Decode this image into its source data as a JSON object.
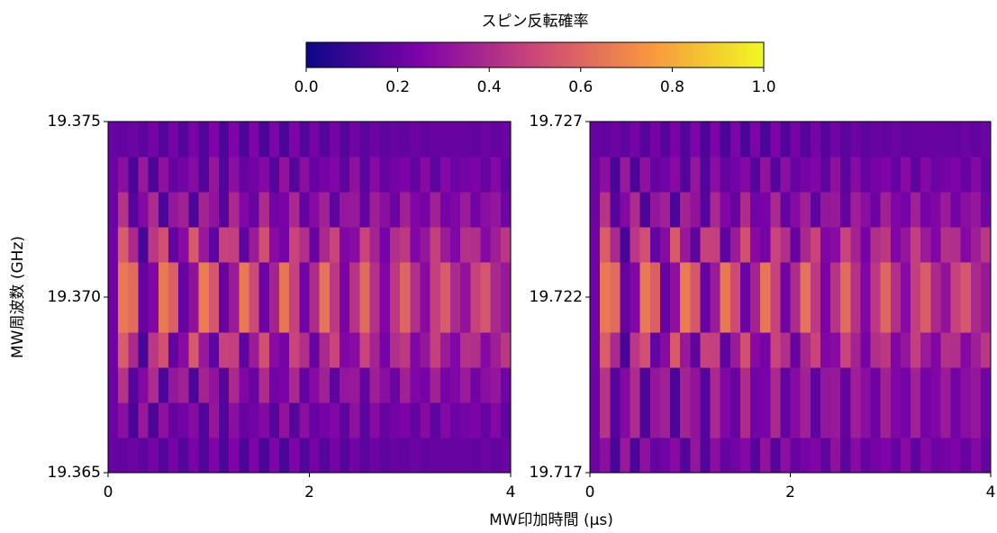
{
  "xlabel": "MW印加時間 (μs)",
  "colorbar": {
    "label": "スピン反転確率",
    "lim": [
      0,
      1
    ],
    "ticks": [
      {
        "value": 0,
        "label": "0.0"
      },
      0.2,
      0.4,
      0.6,
      0.8,
      {
        "value": 1,
        "label": "1.0"
      }
    ],
    "colormap": [
      "#0d0887",
      "#7e03a8",
      "#cc4778",
      "#f89540",
      "#f0f921"
    ]
  },
  "chart_data": [
    {
      "type": "heatmap",
      "ylabel": "MW周波数 (GHz)",
      "xlim": [
        0,
        4
      ],
      "ylim": [
        19.365,
        19.375
      ],
      "xticks": [
        0,
        2,
        4
      ],
      "yticks": [
        19.365,
        {
          "value": 19.37,
          "label": "19.370"
        },
        19.375
      ],
      "z": [
        [
          0.2,
          0.19,
          0.21,
          0.18,
          0.23,
          0.16,
          0.23,
          0.16,
          0.24,
          0.15,
          0.25,
          0.14,
          0.25,
          0.14,
          0.25,
          0.14,
          0.25,
          0.14,
          0.25,
          0.15,
          0.23,
          0.16,
          0.23,
          0.16,
          0.22,
          0.17,
          0.21,
          0.18,
          0.2,
          0.19,
          0.21,
          0.19,
          0.2,
          0.2,
          0.2,
          0.2,
          0.19,
          0.21,
          0.19,
          0.21
        ],
        [
          0.21,
          0.29,
          0.13,
          0.33,
          0.14,
          0.3,
          0.2,
          0.22,
          0.28,
          0.15,
          0.32,
          0.15,
          0.29,
          0.2,
          0.22,
          0.27,
          0.16,
          0.31,
          0.16,
          0.29,
          0.2,
          0.23,
          0.26,
          0.18,
          0.3,
          0.17,
          0.28,
          0.2,
          0.23,
          0.25,
          0.19,
          0.28,
          0.18,
          0.27,
          0.21,
          0.23,
          0.25,
          0.2,
          0.27,
          0.19
        ],
        [
          0.21,
          0.43,
          0.16,
          0.27,
          0.4,
          0.14,
          0.32,
          0.36,
          0.14,
          0.37,
          0.31,
          0.16,
          0.39,
          0.26,
          0.2,
          0.4,
          0.22,
          0.24,
          0.39,
          0.19,
          0.28,
          0.36,
          0.18,
          0.32,
          0.33,
          0.19,
          0.35,
          0.29,
          0.21,
          0.36,
          0.26,
          0.23,
          0.36,
          0.23,
          0.26,
          0.34,
          0.22,
          0.29,
          0.32,
          0.22
        ],
        [
          0.22,
          0.57,
          0.39,
          0.13,
          0.44,
          0.53,
          0.19,
          0.28,
          0.56,
          0.33,
          0.18,
          0.48,
          0.47,
          0.18,
          0.34,
          0.53,
          0.28,
          0.23,
          0.49,
          0.41,
          0.2,
          0.39,
          0.49,
          0.26,
          0.28,
          0.49,
          0.37,
          0.23,
          0.41,
          0.45,
          0.26,
          0.32,
          0.47,
          0.34,
          0.26,
          0.42,
          0.41,
          0.27,
          0.35,
          0.44
        ],
        [
          0.22,
          0.66,
          0.62,
          0.2,
          0.26,
          0.66,
          0.58,
          0.2,
          0.3,
          0.67,
          0.55,
          0.2,
          0.34,
          0.66,
          0.51,
          0.21,
          0.37,
          0.65,
          0.48,
          0.22,
          0.4,
          0.64,
          0.45,
          0.24,
          0.43,
          0.62,
          0.42,
          0.26,
          0.45,
          0.6,
          0.41,
          0.28,
          0.47,
          0.57,
          0.39,
          0.31,
          0.48,
          0.55,
          0.39,
          0.33
        ],
        [
          0.22,
          0.66,
          0.62,
          0.2,
          0.26,
          0.66,
          0.58,
          0.2,
          0.3,
          0.67,
          0.55,
          0.2,
          0.34,
          0.66,
          0.51,
          0.21,
          0.37,
          0.65,
          0.48,
          0.22,
          0.4,
          0.64,
          0.45,
          0.24,
          0.43,
          0.62,
          0.42,
          0.26,
          0.45,
          0.6,
          0.41,
          0.28,
          0.47,
          0.57,
          0.39,
          0.31,
          0.48,
          0.55,
          0.39,
          0.33
        ],
        [
          0.22,
          0.57,
          0.39,
          0.13,
          0.44,
          0.53,
          0.19,
          0.28,
          0.56,
          0.33,
          0.18,
          0.48,
          0.47,
          0.18,
          0.34,
          0.53,
          0.28,
          0.23,
          0.49,
          0.41,
          0.2,
          0.39,
          0.49,
          0.26,
          0.28,
          0.49,
          0.37,
          0.23,
          0.41,
          0.45,
          0.26,
          0.32,
          0.47,
          0.34,
          0.26,
          0.42,
          0.41,
          0.27,
          0.35,
          0.44
        ],
        [
          0.21,
          0.43,
          0.16,
          0.27,
          0.4,
          0.14,
          0.32,
          0.36,
          0.14,
          0.37,
          0.31,
          0.16,
          0.39,
          0.26,
          0.2,
          0.4,
          0.22,
          0.24,
          0.39,
          0.19,
          0.28,
          0.36,
          0.18,
          0.32,
          0.33,
          0.19,
          0.35,
          0.29,
          0.21,
          0.36,
          0.26,
          0.23,
          0.36,
          0.23,
          0.26,
          0.34,
          0.22,
          0.29,
          0.32,
          0.22
        ],
        [
          0.21,
          0.29,
          0.13,
          0.33,
          0.14,
          0.3,
          0.2,
          0.22,
          0.28,
          0.15,
          0.32,
          0.15,
          0.29,
          0.2,
          0.22,
          0.27,
          0.16,
          0.31,
          0.16,
          0.29,
          0.2,
          0.23,
          0.26,
          0.18,
          0.3,
          0.17,
          0.28,
          0.2,
          0.23,
          0.25,
          0.19,
          0.28,
          0.18,
          0.27,
          0.21,
          0.23,
          0.25,
          0.2,
          0.27,
          0.19
        ],
        [
          0.2,
          0.19,
          0.21,
          0.18,
          0.23,
          0.16,
          0.23,
          0.16,
          0.24,
          0.15,
          0.25,
          0.14,
          0.25,
          0.14,
          0.25,
          0.14,
          0.25,
          0.14,
          0.25,
          0.15,
          0.23,
          0.16,
          0.23,
          0.16,
          0.22,
          0.17,
          0.21,
          0.18,
          0.2,
          0.19,
          0.21,
          0.19,
          0.2,
          0.2,
          0.2,
          0.2,
          0.19,
          0.21,
          0.19,
          0.21
        ]
      ]
    },
    {
      "type": "heatmap",
      "xlim": [
        0,
        4
      ],
      "ylim": [
        19.717,
        19.727
      ],
      "xticks": [
        0,
        2,
        4
      ],
      "yticks": [
        19.717,
        19.722,
        19.727
      ],
      "z": [
        [
          0.21,
          0.29,
          0.13,
          0.33,
          0.14,
          0.3,
          0.2,
          0.22,
          0.28,
          0.15,
          0.32,
          0.15,
          0.29,
          0.2,
          0.22,
          0.27,
          0.16,
          0.31,
          0.16,
          0.29,
          0.2,
          0.23,
          0.26,
          0.18,
          0.3,
          0.17,
          0.28,
          0.2,
          0.23,
          0.25,
          0.19,
          0.28,
          0.18,
          0.27,
          0.21,
          0.23,
          0.25,
          0.2,
          0.27,
          0.19
        ],
        [
          0.21,
          0.43,
          0.16,
          0.27,
          0.4,
          0.14,
          0.32,
          0.36,
          0.14,
          0.37,
          0.31,
          0.16,
          0.39,
          0.26,
          0.2,
          0.4,
          0.22,
          0.24,
          0.39,
          0.19,
          0.28,
          0.36,
          0.18,
          0.32,
          0.33,
          0.19,
          0.35,
          0.29,
          0.21,
          0.36,
          0.26,
          0.23,
          0.36,
          0.23,
          0.26,
          0.34,
          0.22,
          0.29,
          0.32,
          0.22
        ],
        [
          0.21,
          0.43,
          0.16,
          0.27,
          0.4,
          0.14,
          0.32,
          0.36,
          0.14,
          0.37,
          0.31,
          0.16,
          0.39,
          0.26,
          0.2,
          0.4,
          0.22,
          0.24,
          0.39,
          0.19,
          0.28,
          0.36,
          0.18,
          0.32,
          0.33,
          0.19,
          0.35,
          0.29,
          0.21,
          0.36,
          0.26,
          0.23,
          0.36,
          0.23,
          0.26,
          0.34,
          0.22,
          0.29,
          0.32,
          0.22
        ],
        [
          0.22,
          0.57,
          0.39,
          0.13,
          0.44,
          0.53,
          0.19,
          0.28,
          0.56,
          0.33,
          0.18,
          0.48,
          0.47,
          0.18,
          0.34,
          0.53,
          0.28,
          0.23,
          0.49,
          0.41,
          0.2,
          0.39,
          0.49,
          0.26,
          0.28,
          0.49,
          0.37,
          0.23,
          0.41,
          0.45,
          0.26,
          0.32,
          0.47,
          0.34,
          0.26,
          0.42,
          0.41,
          0.27,
          0.35,
          0.44
        ],
        [
          0.22,
          0.66,
          0.62,
          0.2,
          0.26,
          0.66,
          0.58,
          0.2,
          0.3,
          0.67,
          0.55,
          0.2,
          0.34,
          0.66,
          0.51,
          0.21,
          0.37,
          0.65,
          0.48,
          0.22,
          0.4,
          0.64,
          0.45,
          0.24,
          0.43,
          0.62,
          0.42,
          0.26,
          0.45,
          0.6,
          0.41,
          0.28,
          0.47,
          0.57,
          0.39,
          0.31,
          0.48,
          0.55,
          0.39,
          0.33
        ],
        [
          0.22,
          0.66,
          0.62,
          0.2,
          0.26,
          0.66,
          0.58,
          0.2,
          0.3,
          0.67,
          0.55,
          0.2,
          0.34,
          0.66,
          0.51,
          0.21,
          0.37,
          0.65,
          0.48,
          0.22,
          0.4,
          0.64,
          0.45,
          0.24,
          0.43,
          0.62,
          0.42,
          0.26,
          0.45,
          0.6,
          0.41,
          0.28,
          0.47,
          0.57,
          0.39,
          0.31,
          0.48,
          0.55,
          0.39,
          0.33
        ],
        [
          0.22,
          0.57,
          0.39,
          0.13,
          0.44,
          0.53,
          0.19,
          0.28,
          0.56,
          0.33,
          0.18,
          0.48,
          0.47,
          0.18,
          0.34,
          0.53,
          0.28,
          0.23,
          0.49,
          0.41,
          0.2,
          0.39,
          0.49,
          0.26,
          0.28,
          0.49,
          0.37,
          0.23,
          0.41,
          0.45,
          0.26,
          0.32,
          0.47,
          0.34,
          0.26,
          0.42,
          0.41,
          0.27,
          0.35,
          0.44
        ],
        [
          0.21,
          0.43,
          0.16,
          0.27,
          0.4,
          0.14,
          0.32,
          0.36,
          0.14,
          0.37,
          0.31,
          0.16,
          0.39,
          0.26,
          0.2,
          0.4,
          0.22,
          0.24,
          0.39,
          0.19,
          0.28,
          0.36,
          0.18,
          0.32,
          0.33,
          0.19,
          0.35,
          0.29,
          0.21,
          0.36,
          0.26,
          0.23,
          0.36,
          0.23,
          0.26,
          0.34,
          0.22,
          0.29,
          0.32,
          0.22
        ],
        [
          0.21,
          0.29,
          0.13,
          0.33,
          0.14,
          0.3,
          0.2,
          0.22,
          0.28,
          0.15,
          0.32,
          0.15,
          0.29,
          0.2,
          0.22,
          0.27,
          0.16,
          0.31,
          0.16,
          0.29,
          0.2,
          0.23,
          0.26,
          0.18,
          0.3,
          0.17,
          0.28,
          0.2,
          0.23,
          0.25,
          0.19,
          0.28,
          0.18,
          0.27,
          0.21,
          0.23,
          0.25,
          0.2,
          0.27,
          0.19
        ],
        [
          0.2,
          0.19,
          0.21,
          0.18,
          0.23,
          0.16,
          0.23,
          0.16,
          0.24,
          0.15,
          0.25,
          0.14,
          0.25,
          0.14,
          0.25,
          0.14,
          0.25,
          0.14,
          0.25,
          0.15,
          0.23,
          0.16,
          0.23,
          0.16,
          0.22,
          0.17,
          0.21,
          0.18,
          0.2,
          0.19,
          0.21,
          0.19,
          0.2,
          0.2,
          0.2,
          0.2,
          0.19,
          0.21,
          0.19,
          0.21
        ]
      ]
    }
  ]
}
